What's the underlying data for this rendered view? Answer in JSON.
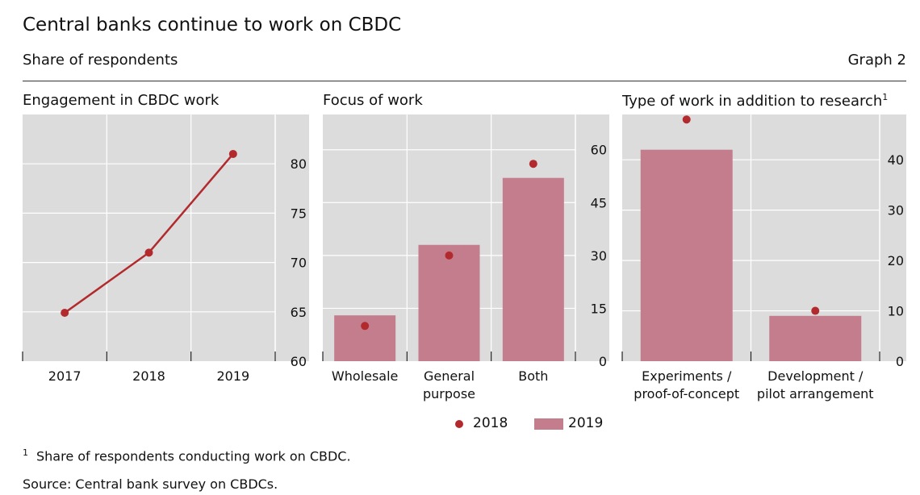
{
  "header": {
    "title": "Central banks continue to work on CBDC",
    "subtitle": "Share of respondents",
    "graph_number": "Graph 2"
  },
  "panels": [
    {
      "title": "Engagement in CBDC work",
      "sup": ""
    },
    {
      "title": "Focus of work",
      "sup": ""
    },
    {
      "title": "Type of work in addition to research",
      "sup": "1"
    }
  ],
  "legend": {
    "dot_label": "2018",
    "bar_label": "2019"
  },
  "footnote": {
    "marker": "1",
    "text": "Share of respondents conducting work on CBDC."
  },
  "source": "Source: Central bank survey on CBDCs.",
  "colors": {
    "panel_bg": "#dcdcdc",
    "line": "#b22a2e",
    "bar": "#c47d8c",
    "dot": "#b22a2e"
  },
  "chart_data": [
    {
      "type": "line",
      "title": "Engagement in CBDC work",
      "categories": [
        "2017",
        "2018",
        "2019"
      ],
      "series": [
        {
          "name": "",
          "values": [
            64.9,
            71.0,
            81.0
          ]
        }
      ],
      "ylim": [
        60,
        85
      ],
      "yticks": [
        60,
        65,
        70,
        75,
        80
      ],
      "axis_side": "right",
      "grid": true
    },
    {
      "type": "bar",
      "title": "Focus of work",
      "categories": [
        [
          "Wholesale"
        ],
        [
          "General",
          "purpose"
        ],
        [
          "Both"
        ]
      ],
      "series": [
        {
          "name": "2019",
          "kind": "bar",
          "values": [
            13,
            33,
            52
          ]
        },
        {
          "name": "2018",
          "kind": "dot",
          "values": [
            10,
            30,
            56
          ]
        }
      ],
      "ylim": [
        0,
        70
      ],
      "yticks": [
        0,
        15,
        30,
        45,
        60
      ],
      "axis_side": "right",
      "grid": true
    },
    {
      "type": "bar",
      "title": "Type of work in addition to research",
      "categories": [
        [
          "Experiments /",
          "proof-of-concept"
        ],
        [
          "Development /",
          "pilot arrangement"
        ]
      ],
      "series": [
        {
          "name": "2019",
          "kind": "bar",
          "values": [
            42,
            9
          ]
        },
        {
          "name": "2018",
          "kind": "dot",
          "values": [
            48,
            10
          ]
        }
      ],
      "ylim": [
        0,
        49
      ],
      "yticks": [
        0,
        10,
        20,
        30,
        40
      ],
      "axis_side": "right",
      "grid": true
    }
  ]
}
